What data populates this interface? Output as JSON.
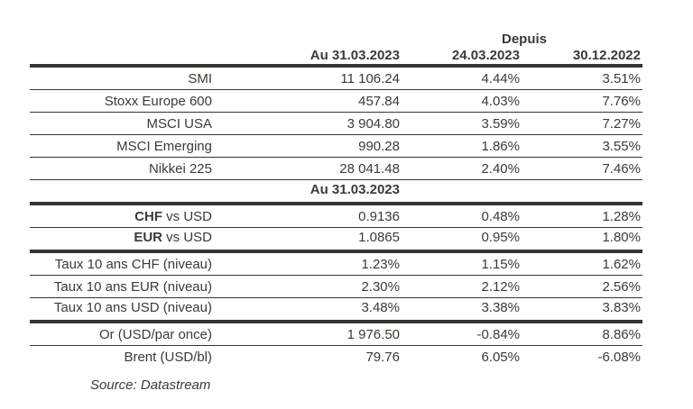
{
  "header": {
    "depuis": "Depuis",
    "col_value": "Au 31.03.2023",
    "col_since_week": "24.03.2023",
    "col_since_ytd": "30.12.2022"
  },
  "indices": [
    {
      "label": "SMI",
      "value": "11 106.24",
      "since_week": "4.44%",
      "since_ytd": "3.51%"
    },
    {
      "label": "Stoxx Europe 600",
      "value": "457.84",
      "since_week": "4.03%",
      "since_ytd": "7.76%"
    },
    {
      "label": "MSCI USA",
      "value": "3 904.80",
      "since_week": "3.59%",
      "since_ytd": "7.27%"
    },
    {
      "label": "MSCI Emerging",
      "value": "990.28",
      "since_week": "1.86%",
      "since_ytd": "3.55%"
    },
    {
      "label": "Nikkei 225",
      "value": "28 041.48",
      "since_week": "2.40%",
      "since_ytd": "7.46%"
    }
  ],
  "section2_header": "Au 31.03.2023",
  "fx": [
    {
      "bold": "CHF",
      "rest": " vs USD",
      "value": "0.9136",
      "since_week": "0.48%",
      "since_ytd": "1.28%"
    },
    {
      "bold": "EUR",
      "rest": " vs USD",
      "value": "1.0865",
      "since_week": "0.95%",
      "since_ytd": "1.80%"
    }
  ],
  "rates": [
    {
      "label": "Taux 10 ans CHF (niveau)",
      "value": "1.23%",
      "since_week": "1.15%",
      "since_ytd": "1.62%"
    },
    {
      "label": "Taux 10 ans EUR (niveau)",
      "value": "2.30%",
      "since_week": "2.12%",
      "since_ytd": "2.56%"
    },
    {
      "label": "Taux 10 ans USD (niveau)",
      "value": "3.48%",
      "since_week": "3.38%",
      "since_ytd": "3.83%"
    }
  ],
  "commodities": [
    {
      "label": "Or (USD/par once)",
      "value": "1 976.50",
      "since_week": "-0.84%",
      "since_ytd": "8.86%"
    },
    {
      "label": "Brent (USD/bl)",
      "value": "79.76",
      "since_week": "6.05%",
      "since_ytd": "-6.08%"
    }
  ],
  "source": "Source: Datastream",
  "colors": {
    "text": "#3d3936",
    "line": "#3a342e",
    "bg": "#ffffff"
  }
}
